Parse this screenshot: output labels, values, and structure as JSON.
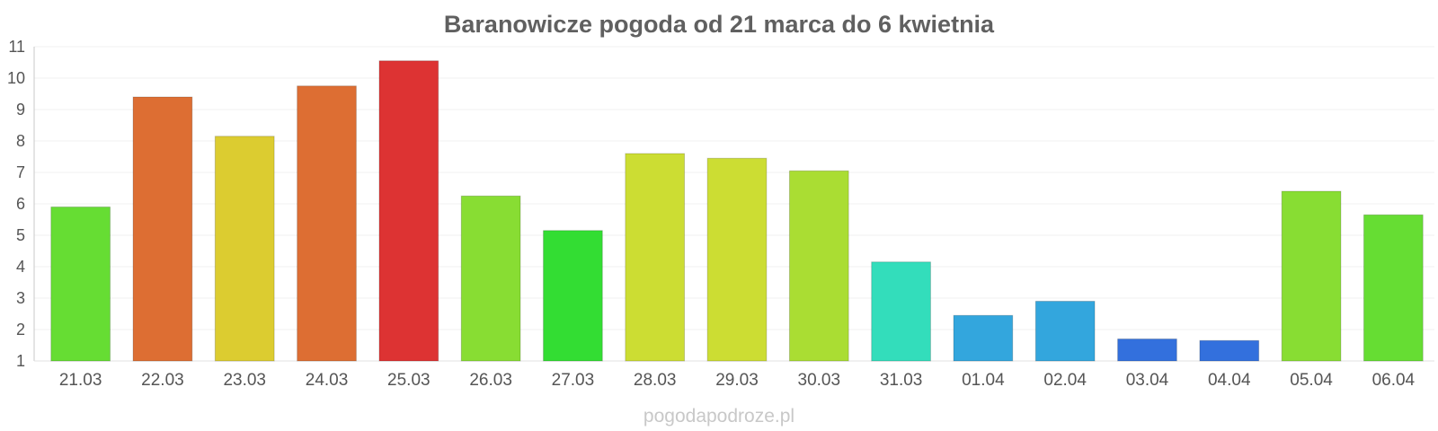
{
  "chart_data": {
    "type": "bar",
    "title": "Baranowicze pogoda od 21 marca do 6 kwietnia",
    "categories": [
      "21.03",
      "22.03",
      "23.03",
      "24.03",
      "25.03",
      "26.03",
      "27.03",
      "28.03",
      "29.03",
      "30.03",
      "31.03",
      "01.04",
      "02.04",
      "03.04",
      "04.04",
      "05.04",
      "06.04"
    ],
    "values": [
      5.9,
      9.4,
      8.15,
      9.75,
      10.55,
      6.25,
      5.15,
      7.6,
      7.45,
      7.05,
      4.15,
      2.45,
      2.9,
      1.7,
      1.65,
      6.4,
      5.65
    ],
    "colors": [
      "#66dd33",
      "#dd6e33",
      "#dccc30",
      "#dd6e33",
      "#dd3333",
      "#88dd33",
      "#33dd33",
      "#ccdd33",
      "#ccdd33",
      "#aadd33",
      "#33ddbb",
      "#33a6dd",
      "#33a6dd",
      "#3370dd",
      "#3370dd",
      "#88dd33",
      "#66dd33"
    ],
    "ylim": [
      1,
      11
    ],
    "yticks": [
      1,
      2,
      3,
      4,
      5,
      6,
      7,
      8,
      9,
      10,
      11
    ],
    "xlabel": "",
    "ylabel": "",
    "grid": true,
    "legend": "none"
  },
  "watermark": "pogodapodroze.pl"
}
